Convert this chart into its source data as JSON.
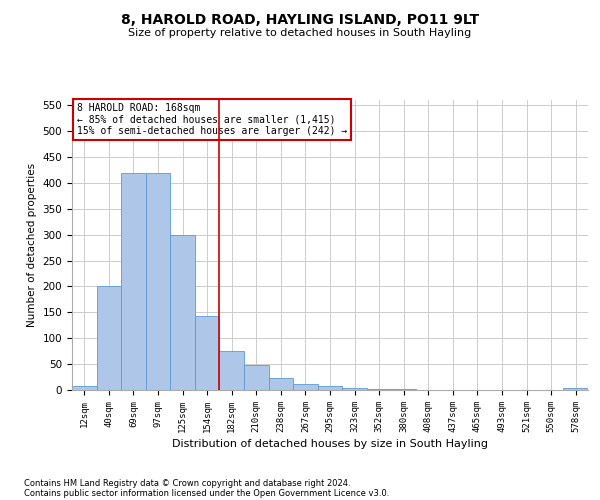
{
  "title_line1": "8, HAROLD ROAD, HAYLING ISLAND, PO11 9LT",
  "title_line2": "Size of property relative to detached houses in South Hayling",
  "xlabel": "Distribution of detached houses by size in South Hayling",
  "ylabel": "Number of detached properties",
  "footnote1": "Contains HM Land Registry data © Crown copyright and database right 2024.",
  "footnote2": "Contains public sector information licensed under the Open Government Licence v3.0.",
  "annotation_title": "8 HAROLD ROAD: 168sqm",
  "annotation_line2": "← 85% of detached houses are smaller (1,415)",
  "annotation_line3": "15% of semi-detached houses are larger (242) →",
  "bar_categories": [
    "12sqm",
    "40sqm",
    "69sqm",
    "97sqm",
    "125sqm",
    "154sqm",
    "182sqm",
    "210sqm",
    "238sqm",
    "267sqm",
    "295sqm",
    "323sqm",
    "352sqm",
    "380sqm",
    "408sqm",
    "437sqm",
    "465sqm",
    "493sqm",
    "521sqm",
    "550sqm",
    "578sqm"
  ],
  "bar_values": [
    8,
    200,
    420,
    420,
    300,
    143,
    75,
    48,
    23,
    11,
    7,
    4,
    2,
    1,
    0,
    0,
    0,
    0,
    0,
    0,
    3
  ],
  "bar_color": "#aec6e8",
  "bar_edge_color": "#5b9bd5",
  "vline_color": "#cc0000",
  "ylim": [
    0,
    560
  ],
  "yticks": [
    0,
    50,
    100,
    150,
    200,
    250,
    300,
    350,
    400,
    450,
    500,
    550
  ],
  "grid_color": "#cccccc",
  "bg_color": "#ffffff",
  "annotation_box_color": "#cc0000"
}
